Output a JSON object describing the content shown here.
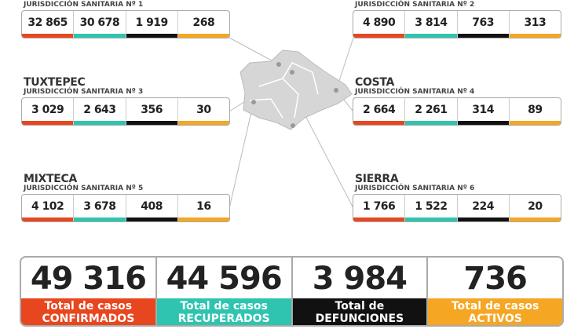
{
  "regions": [
    {
      "subtitle": "JURISDICCIÓN SANITARIA Nº 1",
      "values": [
        "32 865",
        "30 678",
        "1 919",
        "268"
      ]
    },
    {
      "subtitle": "JURISDICCIÓN SANITARIA Nº 2",
      "values": [
        "4 890",
        "3 814",
        "763",
        "313"
      ]
    },
    {
      "name": "TUXTEPEC",
      "subtitle": "JURISDICCIÓN SANITARIA Nº 3",
      "values": [
        "3 029",
        "2 643",
        "356",
        "30"
      ]
    },
    {
      "name": "COSTA",
      "subtitle": "JURISDICCIÓN SANITARIA Nº 4",
      "values": [
        "2 664",
        "2 261",
        "314",
        "89"
      ]
    },
    {
      "name": "MIXTECA",
      "subtitle": "JURISDICCIÓN SANITARIA Nº 5",
      "values": [
        "4 102",
        "3 678",
        "408",
        "16"
      ]
    },
    {
      "name": "SIERRA",
      "subtitle": "JURISDICCIÓN SANITARIA Nº 6",
      "values": [
        "1 766",
        "1 522",
        "224",
        "20"
      ]
    }
  ],
  "totals": [
    {
      "value": "49 316",
      "line1": "Total de casos",
      "line2": "CONFIRMADOS"
    },
    {
      "value": "44 596",
      "line1": "Total de casos",
      "line2": "RECUPERADOS"
    },
    {
      "value": "3 984",
      "line1": "Total de",
      "line2": "DEFUNCIONES"
    },
    {
      "value": "736",
      "line1": "Total de casos",
      "line2": "ACTIVOS"
    }
  ]
}
